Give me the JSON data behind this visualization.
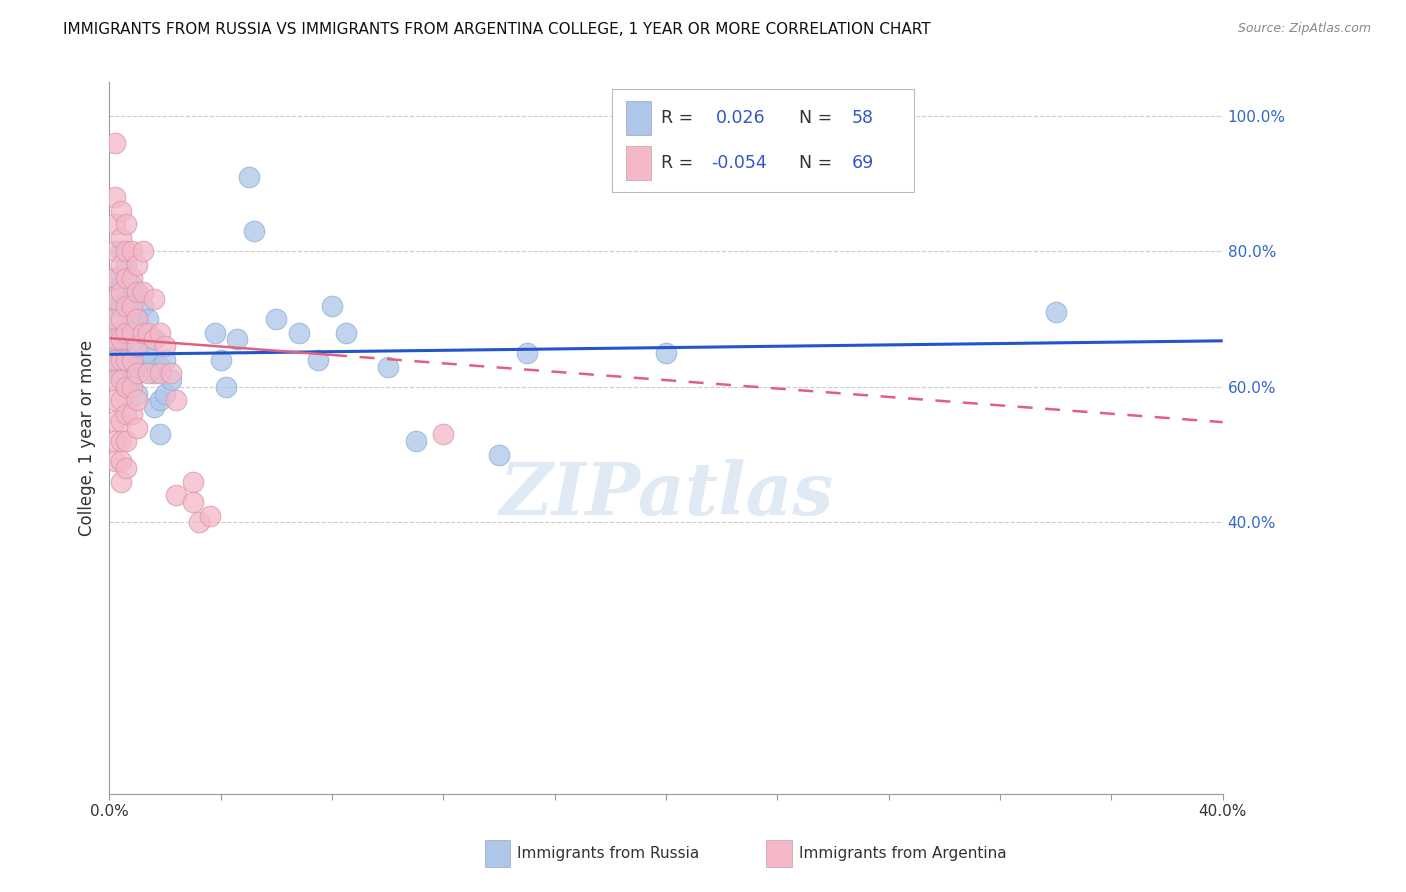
{
  "title": "IMMIGRANTS FROM RUSSIA VS IMMIGRANTS FROM ARGENTINA COLLEGE, 1 YEAR OR MORE CORRELATION CHART",
  "source": "Source: ZipAtlas.com",
  "ylabel": "College, 1 year or more",
  "xlim": [
    0.0,
    0.4
  ],
  "ylim": [
    0.0,
    1.05
  ],
  "ytick_positions": [
    0.4,
    0.6,
    0.8,
    1.0
  ],
  "ytick_labels": [
    "40.0%",
    "60.0%",
    "80.0%",
    "100.0%"
  ],
  "russia_color": "#aec6e8",
  "argentina_color": "#f4b8c8",
  "russia_R": 0.026,
  "russia_N": 58,
  "argentina_R": -0.054,
  "argentina_N": 69,
  "russia_line_color": "#2255cc",
  "argentina_line_color": "#e06080",
  "russia_line_y0": 0.648,
  "russia_line_y1": 0.668,
  "argentina_line_y0": 0.672,
  "argentina_line_y1": 0.548,
  "russia_scatter": [
    [
      0.002,
      0.72
    ],
    [
      0.002,
      0.68
    ],
    [
      0.002,
      0.65
    ],
    [
      0.002,
      0.62
    ],
    [
      0.002,
      0.76
    ],
    [
      0.004,
      0.8
    ],
    [
      0.004,
      0.75
    ],
    [
      0.004,
      0.72
    ],
    [
      0.004,
      0.68
    ],
    [
      0.004,
      0.65
    ],
    [
      0.004,
      0.62
    ],
    [
      0.006,
      0.78
    ],
    [
      0.006,
      0.74
    ],
    [
      0.006,
      0.7
    ],
    [
      0.006,
      0.67
    ],
    [
      0.006,
      0.64
    ],
    [
      0.006,
      0.6
    ],
    [
      0.008,
      0.75
    ],
    [
      0.008,
      0.71
    ],
    [
      0.008,
      0.68
    ],
    [
      0.008,
      0.64
    ],
    [
      0.008,
      0.61
    ],
    [
      0.01,
      0.74
    ],
    [
      0.01,
      0.7
    ],
    [
      0.01,
      0.67
    ],
    [
      0.01,
      0.63
    ],
    [
      0.01,
      0.59
    ],
    [
      0.012,
      0.72
    ],
    [
      0.012,
      0.68
    ],
    [
      0.012,
      0.64
    ],
    [
      0.014,
      0.7
    ],
    [
      0.014,
      0.65
    ],
    [
      0.016,
      0.67
    ],
    [
      0.016,
      0.62
    ],
    [
      0.016,
      0.57
    ],
    [
      0.018,
      0.63
    ],
    [
      0.018,
      0.58
    ],
    [
      0.018,
      0.53
    ],
    [
      0.02,
      0.64
    ],
    [
      0.02,
      0.59
    ],
    [
      0.022,
      0.61
    ],
    [
      0.038,
      0.68
    ],
    [
      0.04,
      0.64
    ],
    [
      0.042,
      0.6
    ],
    [
      0.046,
      0.67
    ],
    [
      0.05,
      0.91
    ],
    [
      0.052,
      0.83
    ],
    [
      0.06,
      0.7
    ],
    [
      0.068,
      0.68
    ],
    [
      0.075,
      0.64
    ],
    [
      0.08,
      0.72
    ],
    [
      0.085,
      0.68
    ],
    [
      0.1,
      0.63
    ],
    [
      0.11,
      0.52
    ],
    [
      0.14,
      0.5
    ],
    [
      0.15,
      0.65
    ],
    [
      0.2,
      0.65
    ],
    [
      0.34,
      0.71
    ]
  ],
  "argentina_scatter": [
    [
      0.002,
      0.96
    ],
    [
      0.002,
      0.88
    ],
    [
      0.002,
      0.84
    ],
    [
      0.002,
      0.8
    ],
    [
      0.002,
      0.76
    ],
    [
      0.002,
      0.73
    ],
    [
      0.002,
      0.7
    ],
    [
      0.002,
      0.67
    ],
    [
      0.002,
      0.64
    ],
    [
      0.002,
      0.61
    ],
    [
      0.002,
      0.58
    ],
    [
      0.002,
      0.55
    ],
    [
      0.002,
      0.52
    ],
    [
      0.002,
      0.49
    ],
    [
      0.004,
      0.86
    ],
    [
      0.004,
      0.82
    ],
    [
      0.004,
      0.78
    ],
    [
      0.004,
      0.74
    ],
    [
      0.004,
      0.7
    ],
    [
      0.004,
      0.67
    ],
    [
      0.004,
      0.64
    ],
    [
      0.004,
      0.61
    ],
    [
      0.004,
      0.58
    ],
    [
      0.004,
      0.55
    ],
    [
      0.004,
      0.52
    ],
    [
      0.004,
      0.49
    ],
    [
      0.004,
      0.46
    ],
    [
      0.006,
      0.84
    ],
    [
      0.006,
      0.8
    ],
    [
      0.006,
      0.76
    ],
    [
      0.006,
      0.72
    ],
    [
      0.006,
      0.68
    ],
    [
      0.006,
      0.64
    ],
    [
      0.006,
      0.6
    ],
    [
      0.006,
      0.56
    ],
    [
      0.006,
      0.52
    ],
    [
      0.006,
      0.48
    ],
    [
      0.008,
      0.8
    ],
    [
      0.008,
      0.76
    ],
    [
      0.008,
      0.72
    ],
    [
      0.008,
      0.68
    ],
    [
      0.008,
      0.64
    ],
    [
      0.008,
      0.6
    ],
    [
      0.008,
      0.56
    ],
    [
      0.01,
      0.78
    ],
    [
      0.01,
      0.74
    ],
    [
      0.01,
      0.7
    ],
    [
      0.01,
      0.66
    ],
    [
      0.01,
      0.62
    ],
    [
      0.01,
      0.58
    ],
    [
      0.01,
      0.54
    ],
    [
      0.012,
      0.8
    ],
    [
      0.012,
      0.74
    ],
    [
      0.012,
      0.68
    ],
    [
      0.014,
      0.68
    ],
    [
      0.014,
      0.62
    ],
    [
      0.016,
      0.73
    ],
    [
      0.016,
      0.67
    ],
    [
      0.018,
      0.68
    ],
    [
      0.018,
      0.62
    ],
    [
      0.02,
      0.66
    ],
    [
      0.022,
      0.62
    ],
    [
      0.024,
      0.58
    ],
    [
      0.024,
      0.44
    ],
    [
      0.03,
      0.46
    ],
    [
      0.03,
      0.43
    ],
    [
      0.032,
      0.4
    ],
    [
      0.036,
      0.41
    ],
    [
      0.12,
      0.53
    ]
  ],
  "watermark_text": "ZIPatlas",
  "legend_color": "#3355cc",
  "bottom_legend_russia": "Immigrants from Russia",
  "bottom_legend_argentina": "Immigrants from Argentina"
}
